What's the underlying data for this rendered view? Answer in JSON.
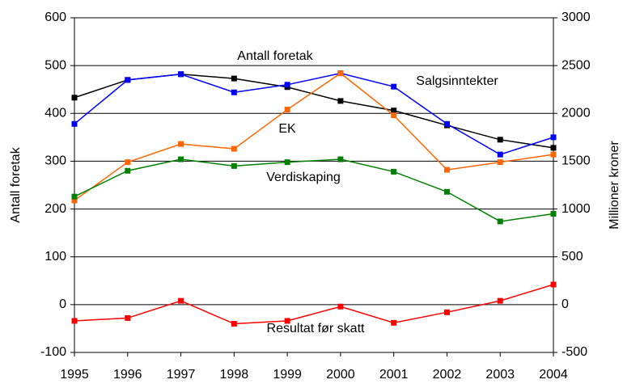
{
  "chart_data": {
    "type": "line",
    "x": [
      1995,
      1996,
      1997,
      1998,
      1999,
      2000,
      2001,
      2002,
      2003,
      2004
    ],
    "xlim": [
      1995,
      2004
    ],
    "xticks": [
      1995,
      1996,
      1997,
      1998,
      1999,
      2000,
      2001,
      2002,
      2003,
      2004
    ],
    "ylabel": "Antall foretak",
    "y2label": "Millioner kroner",
    "ylim": [
      -100,
      600
    ],
    "yticks": [
      -100,
      0,
      100,
      200,
      300,
      400,
      500,
      600
    ],
    "y2lim": [
      -500,
      3000
    ],
    "y2ticks": [
      -500,
      0,
      500,
      1000,
      1500,
      2000,
      2500,
      3000
    ],
    "grid": true,
    "series": [
      {
        "name": "Antall foretak",
        "color": "#000000",
        "values": [
          433,
          470,
          482,
          473,
          455,
          426,
          406,
          375,
          345,
          328
        ]
      },
      {
        "name": "Salgsinntekter",
        "color": "#0000ff",
        "axis": "y2",
        "values": [
          1890,
          2350,
          2410,
          2220,
          2300,
          2420,
          2280,
          1890,
          1570,
          1750
        ]
      },
      {
        "name": "EK",
        "color": "#ff6600",
        "axis": "y2",
        "values": [
          1090,
          1490,
          1680,
          1630,
          2040,
          2420,
          1980,
          1410,
          1490,
          1570
        ]
      },
      {
        "name": "Verdiskaping",
        "color": "#008000",
        "axis": "y2",
        "values": [
          1130,
          1400,
          1520,
          1450,
          1490,
          1520,
          1390,
          1180,
          870,
          950
        ]
      },
      {
        "name": "Resultat før skatt",
        "color": "#ff0000",
        "axis": "y2",
        "values": [
          -170,
          -140,
          40,
          -200,
          -170,
          -20,
          -190,
          -80,
          40,
          210
        ]
      }
    ]
  }
}
